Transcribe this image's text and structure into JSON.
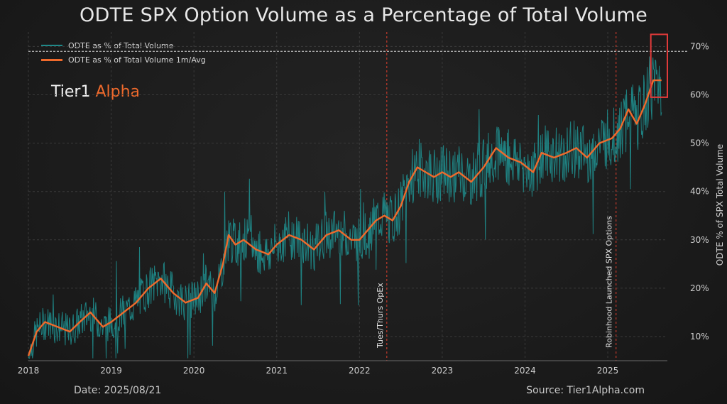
{
  "title": "ODTE SPX Option Volume as a Percentage of Total Volume",
  "brand": {
    "name": "Tier1",
    "accent": "Alpha"
  },
  "footer": {
    "date": "Date: 2025/08/21",
    "source": "Source: Tier1Alpha.com"
  },
  "colors": {
    "background": "#1b1b1b",
    "daily": "#1f8c8c",
    "avg": "#ef6a2c",
    "event": "#c0392b",
    "highlight": "#e03a3a",
    "text": "#e6e6e6"
  },
  "chart_data": {
    "type": "line",
    "ylabel": "ODTE % of SPX Total Volume",
    "ylim": [
      5,
      73
    ],
    "xlim": [
      2018.0,
      2025.72
    ],
    "yticks": [
      "10%",
      "20%",
      "30%",
      "40%",
      "50%",
      "60%",
      "70%"
    ],
    "ytick_values": [
      10,
      20,
      30,
      40,
      50,
      60,
      70
    ],
    "xticks": [
      "2018",
      "2019",
      "2020",
      "2021",
      "2022",
      "2023",
      "2024",
      "2025"
    ],
    "xtick_values": [
      2018,
      2019,
      2020,
      2021,
      2022,
      2023,
      2024,
      2025
    ],
    "legend_position": "top-left",
    "series": [
      {
        "name": "ODTE as % of Total Volume",
        "style": "daily-noisy",
        "noise_pct": 4.5
      },
      {
        "name": "ODTE as % of Total Volume 1m/Avg",
        "style": "smooth",
        "x": [
          2018.0,
          2018.1,
          2018.2,
          2018.35,
          2018.5,
          2018.62,
          2018.75,
          2018.9,
          2019.0,
          2019.15,
          2019.3,
          2019.45,
          2019.6,
          2019.75,
          2019.9,
          2020.05,
          2020.15,
          2020.25,
          2020.35,
          2020.42,
          2020.5,
          2020.6,
          2020.75,
          2020.9,
          2021.0,
          2021.15,
          2021.3,
          2021.45,
          2021.6,
          2021.75,
          2021.9,
          2022.0,
          2022.1,
          2022.2,
          2022.3,
          2022.4,
          2022.5,
          2022.6,
          2022.7,
          2022.8,
          2022.9,
          2023.0,
          2023.1,
          2023.2,
          2023.35,
          2023.5,
          2023.65,
          2023.8,
          2023.95,
          2024.1,
          2024.2,
          2024.35,
          2024.5,
          2024.62,
          2024.75,
          2024.9,
          2025.05,
          2025.15,
          2025.25,
          2025.35,
          2025.45,
          2025.55,
          2025.65
        ],
        "y": [
          6,
          11,
          13,
          12,
          11,
          13,
          15,
          12,
          13,
          15,
          17,
          20,
          22,
          19,
          17,
          18,
          21,
          19,
          25,
          31,
          29,
          30,
          28,
          27,
          29,
          31,
          30,
          28,
          31,
          32,
          30,
          30,
          32,
          34,
          35,
          34,
          37,
          42,
          45,
          44,
          43,
          44,
          43,
          44,
          42,
          45,
          49,
          47,
          46,
          44,
          48,
          47,
          48,
          49,
          47,
          50,
          51,
          53,
          57,
          54,
          58,
          63,
          63
        ]
      }
    ],
    "events": [
      {
        "label": "Tues/Thurs OpEx",
        "x": 2022.33
      },
      {
        "label": "Robinhood Launched SPX Options",
        "x": 2025.1
      }
    ],
    "reference_line": {
      "y": 69
    },
    "highlight_window": {
      "x": [
        2025.52,
        2025.72
      ],
      "y": [
        59.5,
        72.5
      ]
    }
  }
}
